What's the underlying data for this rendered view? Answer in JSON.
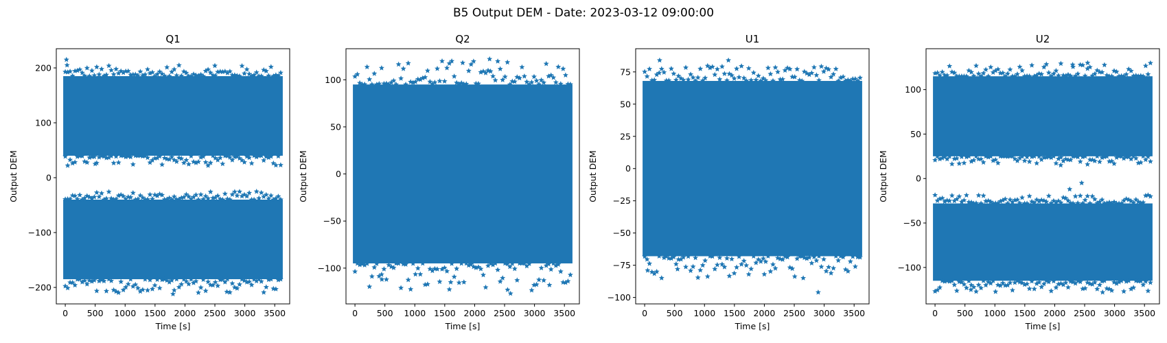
{
  "figure": {
    "title": "B5 Output DEM - Date: 2023-03-12 09:00:00",
    "series_color": "#1f77b4",
    "marker": "star"
  },
  "chart_data": [
    {
      "type": "scatter",
      "title": "Q1",
      "xlabel": "Time [s]",
      "ylabel": "Output DEM",
      "xlim": [
        -150,
        3750
      ],
      "ylim": [
        -230,
        235
      ],
      "xticks": [
        0,
        500,
        1000,
        1500,
        2000,
        2500,
        3000,
        3500
      ],
      "xtick_labels": [
        "0",
        "500",
        "1000",
        "1500",
        "2000",
        "2500",
        "3000",
        "3500"
      ],
      "yticks": [
        -200,
        -100,
        0,
        100,
        200
      ],
      "ytick_labels": [
        "−200",
        "−100",
        "0",
        "100",
        "200"
      ],
      "x_range": [
        0,
        3600
      ],
      "bands": [
        {
          "low": 40,
          "high": 185,
          "outlier_low": 22,
          "outlier_high": 205
        },
        {
          "low": -185,
          "high": -40,
          "outlier_low": -210,
          "outlier_high": -25
        }
      ],
      "outliers": [
        [
          20,
          215
        ],
        [
          30,
          205
        ],
        [
          2500,
          204
        ],
        [
          1800,
          -212
        ],
        [
          2700,
          -208
        ],
        [
          500,
          25
        ]
      ]
    },
    {
      "type": "scatter",
      "title": "Q2",
      "xlabel": "Time [s]",
      "ylabel": "Output DEM",
      "xlim": [
        -150,
        3750
      ],
      "ylim": [
        -138,
        133
      ],
      "xticks": [
        0,
        500,
        1000,
        1500,
        2000,
        2500,
        3000,
        3500
      ],
      "xtick_labels": [
        "0",
        "500",
        "1000",
        "1500",
        "2000",
        "2500",
        "3000",
        "3500"
      ],
      "yticks": [
        -100,
        -50,
        0,
        50,
        100
      ],
      "ytick_labels": [
        "−100",
        "−50",
        "0",
        "50",
        "100"
      ],
      "x_range": [
        0,
        3600
      ],
      "bands": [
        {
          "low": -95,
          "high": 95,
          "outlier_low": -125,
          "outlier_high": 122
        }
      ],
      "outliers": [
        [
          2250,
          122
        ],
        [
          1800,
          118
        ],
        [
          2550,
          -123
        ],
        [
          2600,
          -127
        ],
        [
          3250,
          -118
        ],
        [
          1600,
          -115
        ],
        [
          450,
          -112
        ]
      ]
    },
    {
      "type": "scatter",
      "title": "U1",
      "xlabel": "Time [s]",
      "ylabel": "Output DEM",
      "xlim": [
        -150,
        3750
      ],
      "ylim": [
        -105,
        93
      ],
      "xticks": [
        0,
        500,
        1000,
        1500,
        2000,
        2500,
        3000,
        3500
      ],
      "xtick_labels": [
        "0",
        "500",
        "1000",
        "1500",
        "2000",
        "2500",
        "3000",
        "3500"
      ],
      "yticks": [
        -100,
        -75,
        -50,
        -25,
        0,
        25,
        50,
        75
      ],
      "ytick_labels": [
        "−100",
        "−75",
        "−50",
        "−25",
        "0",
        "25",
        "50",
        "75"
      ],
      "x_range": [
        0,
        3600
      ],
      "bands": [
        {
          "low": -68,
          "high": 68,
          "outlier_low": -85,
          "outlier_high": 80
        }
      ],
      "outliers": [
        [
          250,
          84
        ],
        [
          1400,
          84
        ],
        [
          2900,
          -96
        ],
        [
          2650,
          -85
        ],
        [
          2000,
          -82
        ],
        [
          50,
          -79
        ],
        [
          550,
          -78
        ]
      ]
    },
    {
      "type": "scatter",
      "title": "U2",
      "xlabel": "Time [s]",
      "ylabel": "Output DEM",
      "xlim": [
        -150,
        3750
      ],
      "ylim": [
        -141,
        146
      ],
      "xticks": [
        0,
        500,
        1000,
        1500,
        2000,
        2500,
        3000,
        3500
      ],
      "xtick_labels": [
        "0",
        "500",
        "1000",
        "1500",
        "2000",
        "2500",
        "3000",
        "3500"
      ],
      "yticks": [
        -100,
        -50,
        0,
        50,
        100
      ],
      "ytick_labels": [
        "−100",
        "−50",
        "0",
        "50",
        "100"
      ],
      "x_range": [
        0,
        3600
      ],
      "bands": [
        {
          "low": 25,
          "high": 115,
          "outlier_low": 15,
          "outlier_high": 130
        },
        {
          "low": -115,
          "high": -28,
          "outlier_low": -128,
          "outlier_high": -18
        }
      ],
      "outliers": [
        [
          2550,
          130
        ],
        [
          2300,
          128
        ],
        [
          2100,
          15
        ],
        [
          2250,
          -12
        ],
        [
          2450,
          -5
        ],
        [
          2800,
          -128
        ],
        [
          600,
          -125
        ]
      ]
    }
  ]
}
